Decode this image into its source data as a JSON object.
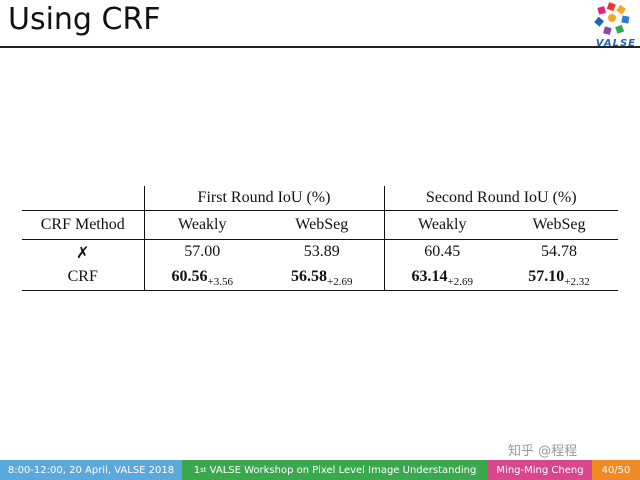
{
  "slide": {
    "title": "Using CRF",
    "logo_text": "VALSE"
  },
  "table": {
    "group_headers": [
      "First Round IoU (%)",
      "Second Round IoU (%)"
    ],
    "column_headers": [
      "CRF Method",
      "Weakly",
      "WebSeg",
      "Weakly",
      "WebSeg"
    ],
    "rows": [
      {
        "method": "✗",
        "cells": [
          {
            "value": "57.00"
          },
          {
            "value": "53.89"
          },
          {
            "value": "60.45"
          },
          {
            "value": "54.78"
          }
        ]
      },
      {
        "method": "CRF",
        "cells": [
          {
            "value": "60.56",
            "delta": "+3.56"
          },
          {
            "value": "56.58",
            "delta": "+2.69"
          },
          {
            "value": "63.14",
            "delta": "+2.69"
          },
          {
            "value": "57.10",
            "delta": "+2.32"
          }
        ]
      }
    ]
  },
  "watermark": "知乎 @程程",
  "footer": {
    "date": "8:00-12:00, 20 April, VALSE 2018",
    "workshop_ordinal": "1",
    "workshop_suffix": "st",
    "workshop_rest": " VALSE Workshop on Pixel Level Image Understanding",
    "author": "Ming-Ming Cheng",
    "page": "40/50"
  },
  "colors": {
    "footer_date_bg": "#5ba8dc",
    "footer_workshop_bg": "#3aa84c",
    "footer_author_bg": "#d9468c",
    "footer_page_bg": "#f08a24",
    "logo_blue": "#1e64b4"
  }
}
